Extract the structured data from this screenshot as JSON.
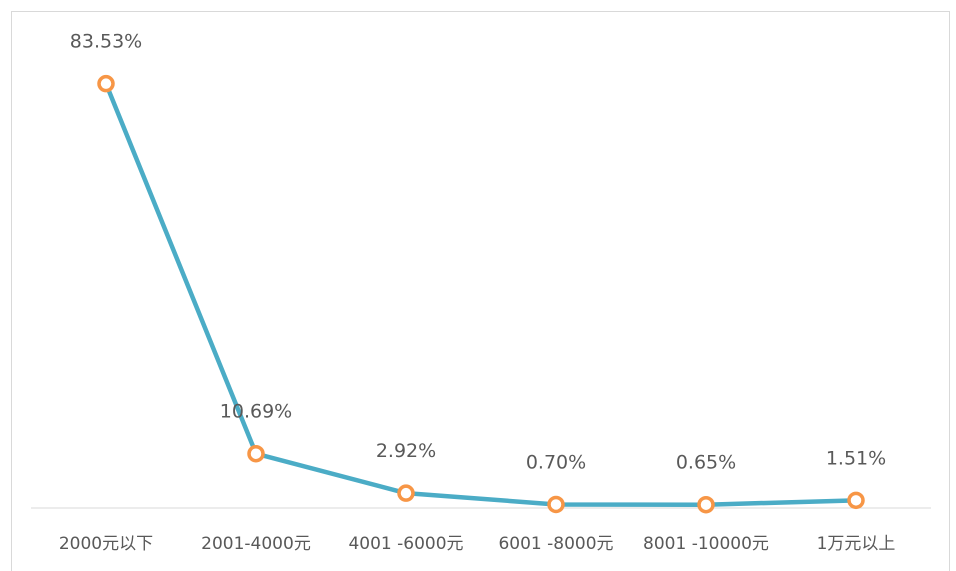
{
  "chart_data": {
    "type": "line",
    "title": "",
    "xlabel": "",
    "ylabel": "",
    "categories": [
      "2000元以下",
      "2001-4000元",
      "4001 -6000元",
      "6001 -8000元",
      "8001 -10000元",
      "1万元以上"
    ],
    "series": [
      {
        "values": [
          83.53,
          10.69,
          2.92,
          0.7,
          0.65,
          1.51
        ],
        "data_labels": [
          "83.53%",
          "10.69%",
          "2.92%",
          "0.70%",
          "0.65%",
          "1.51%"
        ]
      }
    ],
    "ylim": [
      0,
      100
    ],
    "grid": false,
    "legend": "none",
    "colors": {
      "line": "#4bacc6",
      "marker_stroke": "#f79646",
      "marker_fill": "#ffffff",
      "axis": "#d9d9d9",
      "text": "#595959"
    }
  }
}
